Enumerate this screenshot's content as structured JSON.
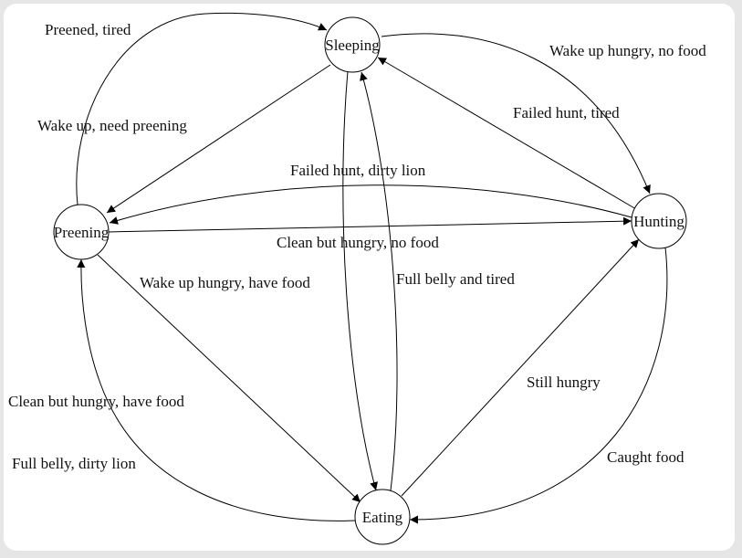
{
  "diagram": {
    "nodes": [
      {
        "id": "sleeping",
        "label": "Sleeping"
      },
      {
        "id": "preening",
        "label": "Preening"
      },
      {
        "id": "hunting",
        "label": "Hunting"
      },
      {
        "id": "eating",
        "label": "Eating"
      }
    ],
    "edges": [
      {
        "from": "preening",
        "to": "sleeping",
        "label": "Preened, tired"
      },
      {
        "from": "sleeping",
        "to": "preening",
        "label": "Wake up, need preening"
      },
      {
        "from": "sleeping",
        "to": "hunting",
        "label": "Wake up hungry, no food"
      },
      {
        "from": "hunting",
        "to": "sleeping",
        "label": "Failed hunt, tired"
      },
      {
        "from": "hunting",
        "to": "preening",
        "label": "Failed hunt, dirty lion"
      },
      {
        "from": "preening",
        "to": "hunting",
        "label": "Clean but hungry, no food"
      },
      {
        "from": "sleeping",
        "to": "eating",
        "label": "Wake up hungry, have food"
      },
      {
        "from": "eating",
        "to": "sleeping",
        "label": "Full belly and tired"
      },
      {
        "from": "preening",
        "to": "eating",
        "label": "Clean but hungry, have food"
      },
      {
        "from": "eating",
        "to": "preening",
        "label": "Full belly, dirty lion"
      },
      {
        "from": "eating",
        "to": "hunting",
        "label": "Still hungry"
      },
      {
        "from": "hunting",
        "to": "eating",
        "label": "Caught food"
      }
    ]
  }
}
